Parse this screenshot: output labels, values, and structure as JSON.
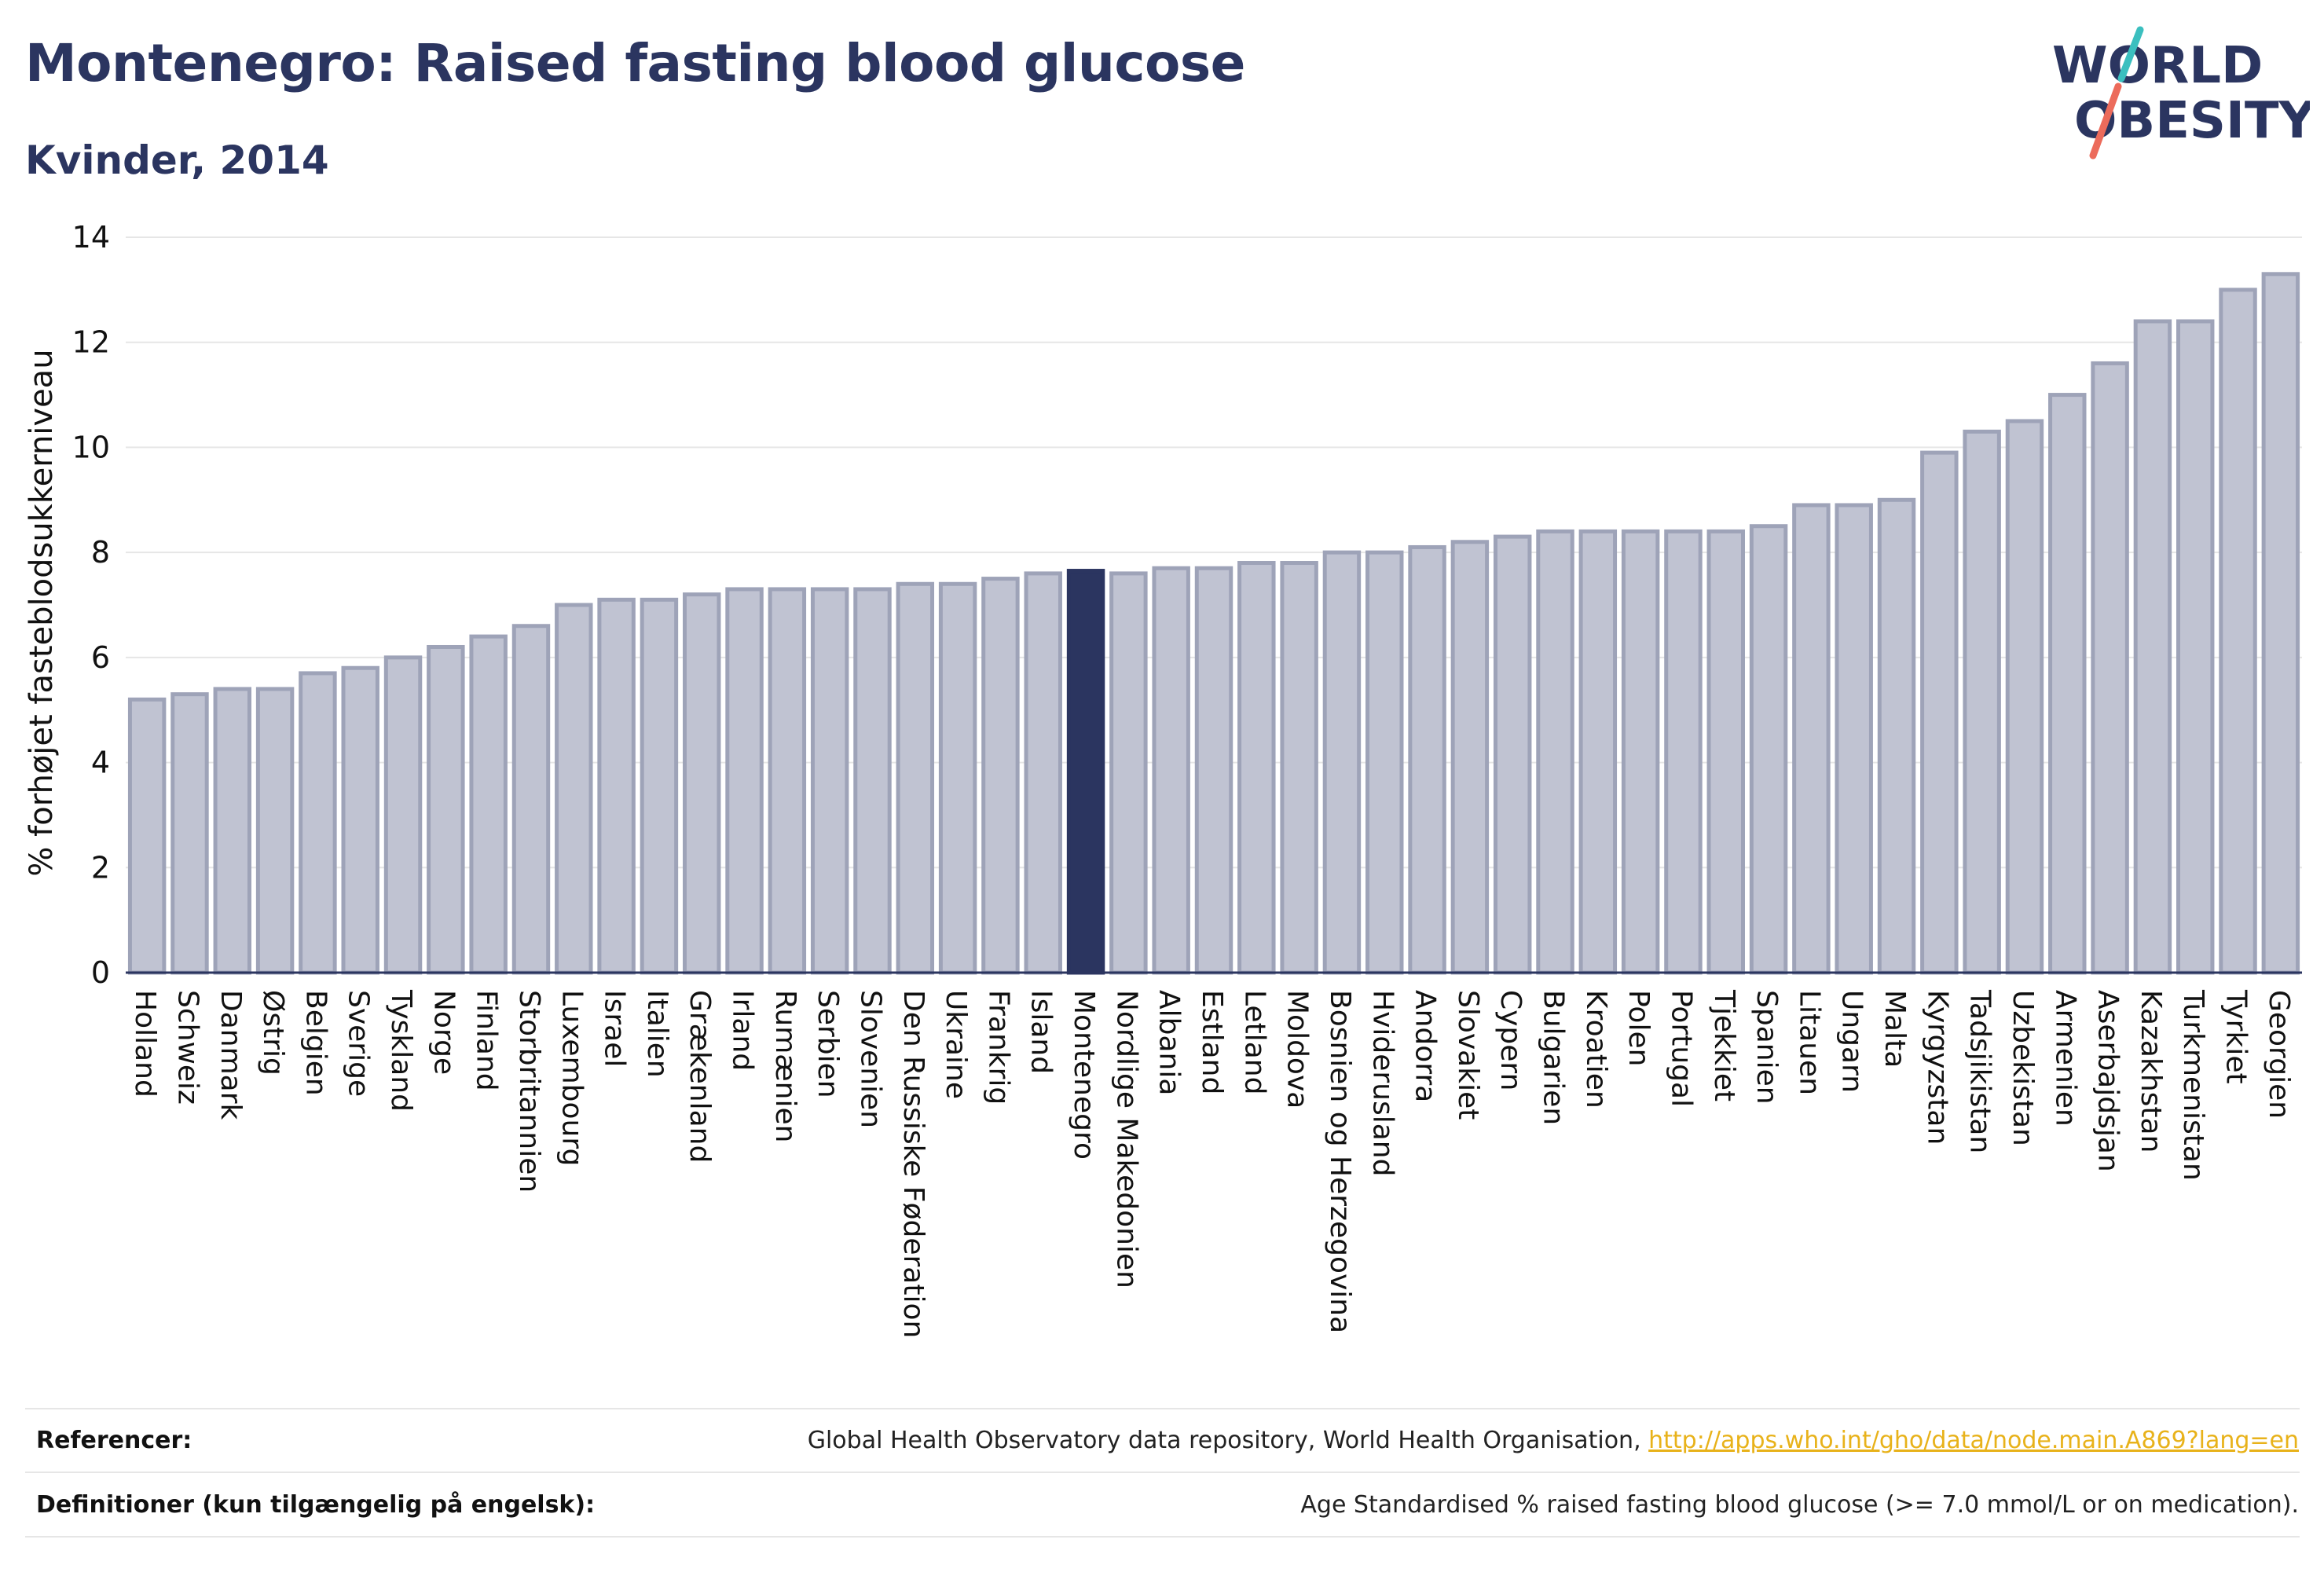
{
  "header": {
    "title": "Montenegro: Raised fasting blood glucose",
    "subtitle": "Kvinder, 2014"
  },
  "logo": {
    "line1": "WORLD",
    "line2": "OBESITY"
  },
  "colors": {
    "highlight": "#2b3560",
    "bar": "#c0c3d2",
    "bar_stroke": "#9ea3b8",
    "title": "#2b3560",
    "link": "#e8b21a",
    "logo_teal": "#3bbfbf",
    "logo_coral": "#ec6b5b"
  },
  "chart_data": {
    "type": "bar",
    "title": "Montenegro: Raised fasting blood glucose",
    "subtitle": "Kvinder, 2014",
    "ylabel": "% forhøjet fasteblodsukkerniveau",
    "xlabel": "",
    "ylim": [
      0,
      14
    ],
    "yticks": [
      0,
      2,
      4,
      6,
      8,
      10,
      12,
      14
    ],
    "grid": true,
    "highlight": "Montenegro",
    "categories": [
      "Holland",
      "Schweiz",
      "Danmark",
      "Østrig",
      "Belgien",
      "Sverige",
      "Tyskland",
      "Norge",
      "Finland",
      "Storbritannien",
      "Luxembourg",
      "Israel",
      "Italien",
      "Grækenland",
      "Irland",
      "Rumænien",
      "Serbien",
      "Slovenien",
      "Den Russiske Føderation",
      "Ukraine",
      "Frankrig",
      "Island",
      "Montenegro",
      "Nordlige Makedonien",
      "Albania",
      "Estland",
      "Letland",
      "Moldova",
      "Bosnien og Herzegovina",
      "Hviderusland",
      "Andorra",
      "Slovakiet",
      "Cypern",
      "Bulgarien",
      "Kroatien",
      "Polen",
      "Portugal",
      "Tjekkiet",
      "Spanien",
      "Litauen",
      "Ungarn",
      "Malta",
      "Kyrgyzstan",
      "Tadsjikistan",
      "Uzbekistan",
      "Armenien",
      "Aserbajdsjan",
      "Kazakhstan",
      "Turkmenistan",
      "Tyrkiet",
      "Georgien"
    ],
    "values": [
      5.2,
      5.3,
      5.4,
      5.4,
      5.7,
      5.8,
      6.0,
      6.2,
      6.4,
      6.6,
      7.0,
      7.1,
      7.1,
      7.2,
      7.3,
      7.3,
      7.3,
      7.3,
      7.4,
      7.4,
      7.5,
      7.6,
      7.65,
      7.6,
      7.7,
      7.7,
      7.8,
      7.8,
      8.0,
      8.0,
      8.1,
      8.2,
      8.3,
      8.4,
      8.4,
      8.4,
      8.4,
      8.4,
      8.5,
      8.9,
      8.9,
      9.0,
      9.9,
      10.3,
      10.5,
      11.0,
      11.6,
      12.4,
      12.4,
      13.0,
      13.3
    ]
  },
  "footer": {
    "references_label": "Referencer:",
    "references_text": "Global Health Observatory data repository, World Health Organisation, ",
    "references_link": "http://apps.who.int/gho/data/node.main.A869?lang=en",
    "definitions_label": "Definitioner (kun tilgængelig på engelsk):",
    "definitions_text": "Age Standardised % raised fasting blood glucose (>= 7.0 mmol/L or on medication)."
  }
}
